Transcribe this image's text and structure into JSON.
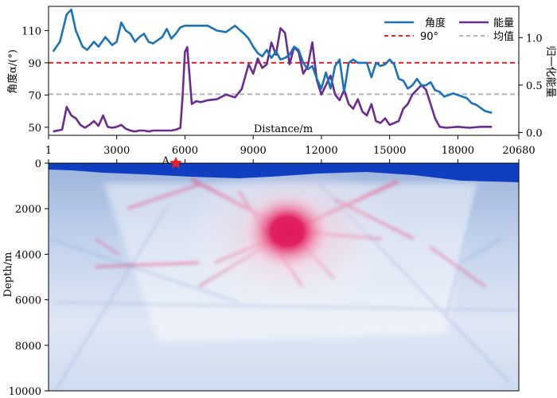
{
  "colors": {
    "angle": "#1a72b8",
    "energy": "#6a2c91",
    "ref90": "#e8202a",
    "mean": "#b4b4b4",
    "sea": "#0f3fc0",
    "hot": "#e0195b",
    "cold": "#7d9ad0"
  },
  "chart_data": [
    {
      "type": "line",
      "xlabel": "Distance/m",
      "ylabel": "角度α/(°)",
      "y2label": "归一化能量",
      "xlim": [
        1,
        20680
      ],
      "ylim": [
        45,
        125
      ],
      "y2lim": [
        -0.03,
        1.33
      ],
      "xticks": [
        "1",
        "3000",
        "6000",
        "9000",
        "12000",
        "15000",
        "18000",
        "20680"
      ],
      "xtick_values": [
        1,
        3000,
        6000,
        9000,
        12000,
        15000,
        18000,
        20680
      ],
      "yticks": [
        "50",
        "70",
        "90",
        "110"
      ],
      "y2ticks": [
        "0.0",
        "0.5",
        "1.0"
      ],
      "legend": [
        "角度",
        "能量",
        "90°",
        "均值"
      ],
      "legend_position": "top-right",
      "reference_lines": {
        "ref90": 90,
        "mean": 70.5
      },
      "series": [
        {
          "name": "角度",
          "axis": "left",
          "x": [
            200,
            500,
            800,
            1000,
            1200,
            1500,
            1700,
            2000,
            2200,
            2500,
            2800,
            3000,
            3200,
            3400,
            3600,
            3800,
            4000,
            4200,
            4400,
            4600,
            4800,
            5000,
            5200,
            5400,
            5600,
            5800,
            6000,
            6300,
            6600,
            7000,
            7400,
            7800,
            8200,
            8600,
            8800,
            9000,
            9200,
            9400,
            9600,
            9800,
            10000,
            10200,
            10400,
            10600,
            10800,
            11000,
            11200,
            11400,
            11600,
            11800,
            12000,
            12200,
            12400,
            12600,
            12800,
            13000,
            13200,
            13400,
            13600,
            13800,
            14000,
            14200,
            14400,
            14600,
            14800,
            15000,
            15200,
            15400,
            15600,
            15800,
            16000,
            16200,
            16400,
            16600,
            16800,
            17000,
            17200,
            17400,
            17600,
            17800,
            18000,
            18200,
            18400,
            18600,
            18800,
            19000,
            19200,
            19500
          ],
          "y": [
            97,
            103,
            120,
            123,
            110,
            100,
            98,
            103,
            100,
            106,
            101,
            103,
            115,
            110,
            108,
            103,
            106,
            108,
            103,
            102,
            104,
            106,
            111,
            105,
            108,
            112,
            113,
            113,
            113,
            113,
            110,
            109,
            113,
            108,
            105,
            100,
            96,
            94,
            98,
            93,
            97,
            92,
            93,
            95,
            100,
            98,
            90,
            86,
            88,
            80,
            74,
            84,
            74,
            88,
            92,
            72,
            90,
            92,
            90,
            90,
            90,
            81,
            90,
            88,
            89,
            92,
            89,
            80,
            79,
            74,
            76,
            80,
            76,
            76,
            78,
            73,
            72,
            69,
            70,
            71,
            70,
            69,
            68,
            65,
            64,
            62,
            60,
            59
          ]
        },
        {
          "name": "能量",
          "axis": "right",
          "x": [
            200,
            400,
            600,
            800,
            1000,
            1200,
            1400,
            1600,
            1800,
            2000,
            2200,
            2400,
            2600,
            2800,
            3000,
            3200,
            3400,
            3600,
            3800,
            4000,
            4200,
            4400,
            4600,
            4800,
            5000,
            5200,
            5400,
            5600,
            5800,
            5900,
            6000,
            6100,
            6200,
            6300,
            6500,
            6700,
            7000,
            7400,
            7800,
            8200,
            8500,
            8800,
            9000,
            9200,
            9400,
            9600,
            9800,
            10000,
            10200,
            10400,
            10600,
            10800,
            11000,
            11200,
            11400,
            11600,
            11800,
            12000,
            12200,
            12400,
            12600,
            12800,
            13000,
            13200,
            13400,
            13600,
            13800,
            14000,
            14200,
            14400,
            14600,
            14800,
            15000,
            15200,
            15400,
            15600,
            15800,
            16000,
            16200,
            16400,
            16600,
            16800,
            17000,
            17200,
            17500,
            18000,
            18500,
            19000,
            19500
          ],
          "y": [
            0.01,
            0.02,
            0.03,
            0.27,
            0.18,
            0.15,
            0.08,
            0.05,
            0.08,
            0.12,
            0.07,
            0.18,
            0.06,
            0.05,
            0.06,
            0.08,
            0.04,
            0.02,
            0.01,
            0.02,
            0.02,
            0.01,
            0.02,
            0.02,
            0.02,
            0.02,
            0.02,
            0.03,
            0.05,
            0.4,
            0.85,
            0.9,
            0.6,
            0.3,
            0.33,
            0.32,
            0.34,
            0.35,
            0.4,
            0.37,
            0.46,
            0.72,
            0.62,
            0.78,
            0.68,
            0.72,
            0.95,
            0.82,
            1.1,
            1.05,
            0.72,
            0.9,
            0.85,
            0.62,
            0.7,
            0.95,
            0.55,
            0.4,
            0.5,
            0.6,
            0.4,
            0.34,
            0.45,
            0.3,
            0.25,
            0.35,
            0.22,
            0.18,
            0.3,
            0.12,
            0.1,
            0.15,
            0.08,
            0.1,
            0.12,
            0.25,
            0.3,
            0.4,
            0.45,
            0.5,
            0.45,
            0.3,
            0.15,
            0.06,
            0.05,
            0.06,
            0.05,
            0.06,
            0.06
          ]
        }
      ]
    },
    {
      "type": "heatmap",
      "xlabel": "",
      "ylabel": "Depth/m",
      "xlim": [
        1,
        20680
      ],
      "ylim": [
        0,
        10000
      ],
      "yticks": [
        "0",
        "2000",
        "4000",
        "6000",
        "8000",
        "10000"
      ],
      "ytick_values": [
        0,
        2000,
        4000,
        6000,
        8000,
        10000
      ],
      "marker": {
        "label": "A",
        "x": 5600,
        "depth": 0
      },
      "peak": {
        "x": 10500,
        "depth": 3000
      }
    }
  ]
}
